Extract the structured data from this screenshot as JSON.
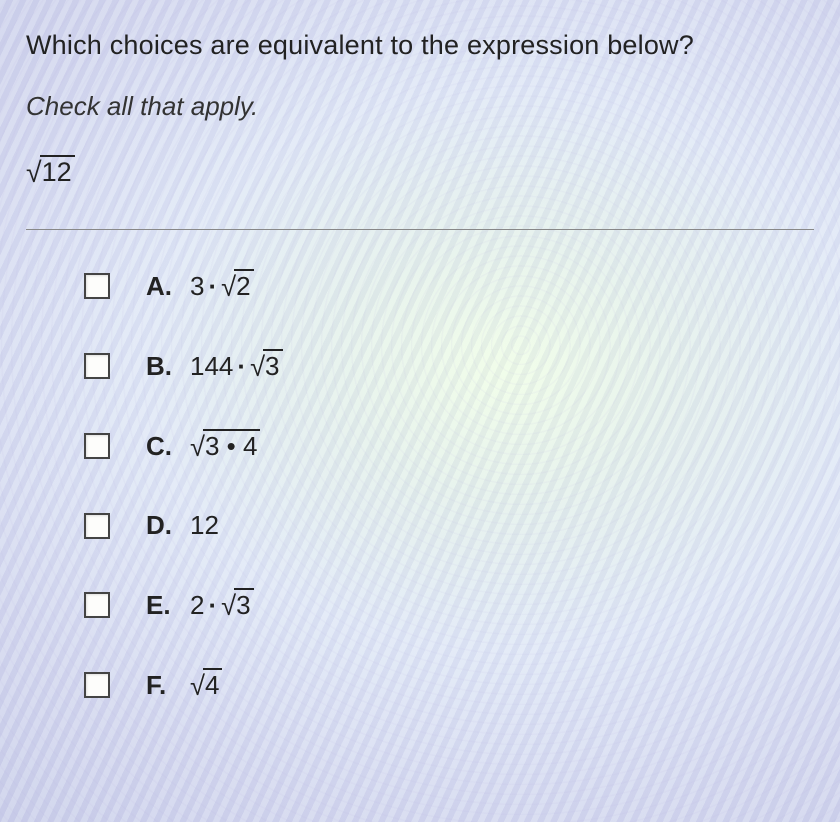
{
  "question": "Which choices are equivalent to the expression below?",
  "instruction": "Check all that apply.",
  "expression_radicand": "12",
  "divider_color": "#888888",
  "text_color": "#222222",
  "checkbox_border": "#444444",
  "checkbox_bg": "#fdfdfb",
  "choices": [
    {
      "letter": "A.",
      "prefix": "3",
      "op": "·",
      "radicand": "2",
      "suffix": ""
    },
    {
      "letter": "B.",
      "prefix": "144",
      "op": "·",
      "radicand": "3",
      "suffix": ""
    },
    {
      "letter": "C.",
      "prefix": "",
      "op": "",
      "radicand": "3 • 4",
      "suffix": ""
    },
    {
      "letter": "D.",
      "prefix": "12",
      "op": "",
      "radicand": "",
      "suffix": ""
    },
    {
      "letter": "E.",
      "prefix": "2",
      "op": "·",
      "radicand": "3",
      "suffix": ""
    },
    {
      "letter": "F.",
      "prefix": "",
      "op": "",
      "radicand": "4",
      "suffix": ""
    }
  ]
}
